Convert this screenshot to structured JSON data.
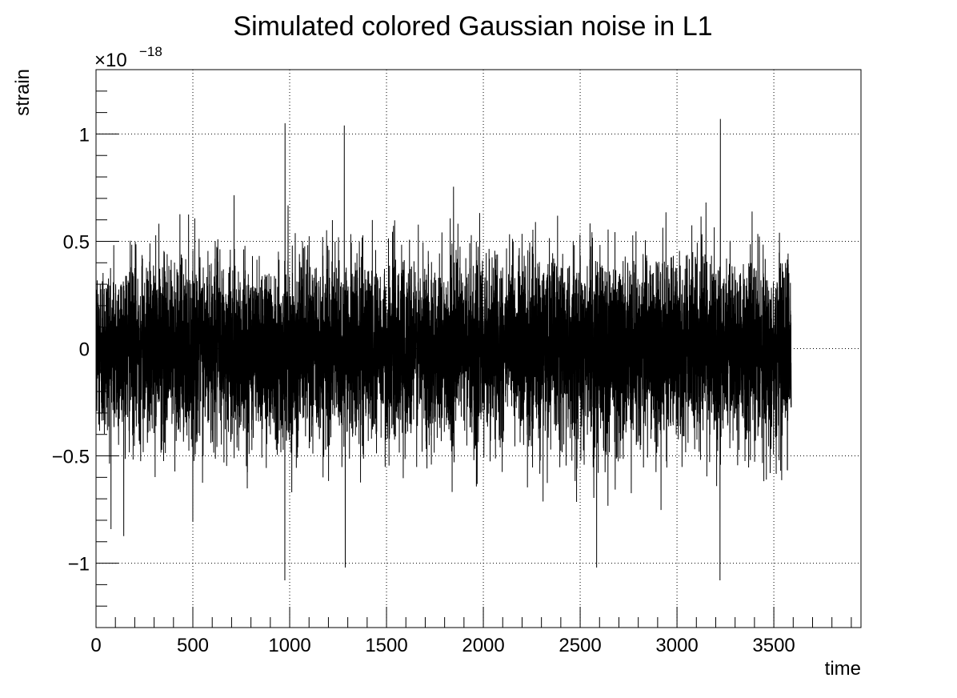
{
  "chart_data": {
    "type": "line",
    "title": "Simulated colored Gaussian noise in L1",
    "xlabel": "time",
    "ylabel": "strain",
    "y_exponent_label": "×10",
    "y_exponent_power": "−18",
    "y_scale": 1e-18,
    "xlim": [
      0,
      3950
    ],
    "ylim": [
      -1.3,
      1.3
    ],
    "x_ticks": [
      0,
      500,
      1000,
      1500,
      2000,
      2500,
      3000,
      3500
    ],
    "x_tick_labels": [
      "0",
      "500",
      "1000",
      "1500",
      "2000",
      "2500",
      "3000",
      "3500"
    ],
    "y_ticks": [
      -1,
      -0.5,
      0,
      0.5,
      1
    ],
    "y_tick_labels": [
      "−1",
      "−0.5",
      "0",
      "0.5",
      "1"
    ],
    "grid": true,
    "series": [
      {
        "color": "#000000",
        "x_start": 0,
        "x_end": 3590,
        "description_stats": {
          "core_amplitude": 0.5,
          "max": 1.07,
          "min": -1.08
        },
        "peaks": [
          {
            "x": 976,
            "y": 1.05
          },
          {
            "x": 1282,
            "y": 1.04
          },
          {
            "x": 3224,
            "y": 1.07
          },
          {
            "x": 975,
            "y": -1.08
          },
          {
            "x": 1287,
            "y": -1.02
          },
          {
            "x": 3222,
            "y": -1.08
          },
          {
            "x": 2585,
            "y": -1.02
          }
        ]
      }
    ]
  }
}
